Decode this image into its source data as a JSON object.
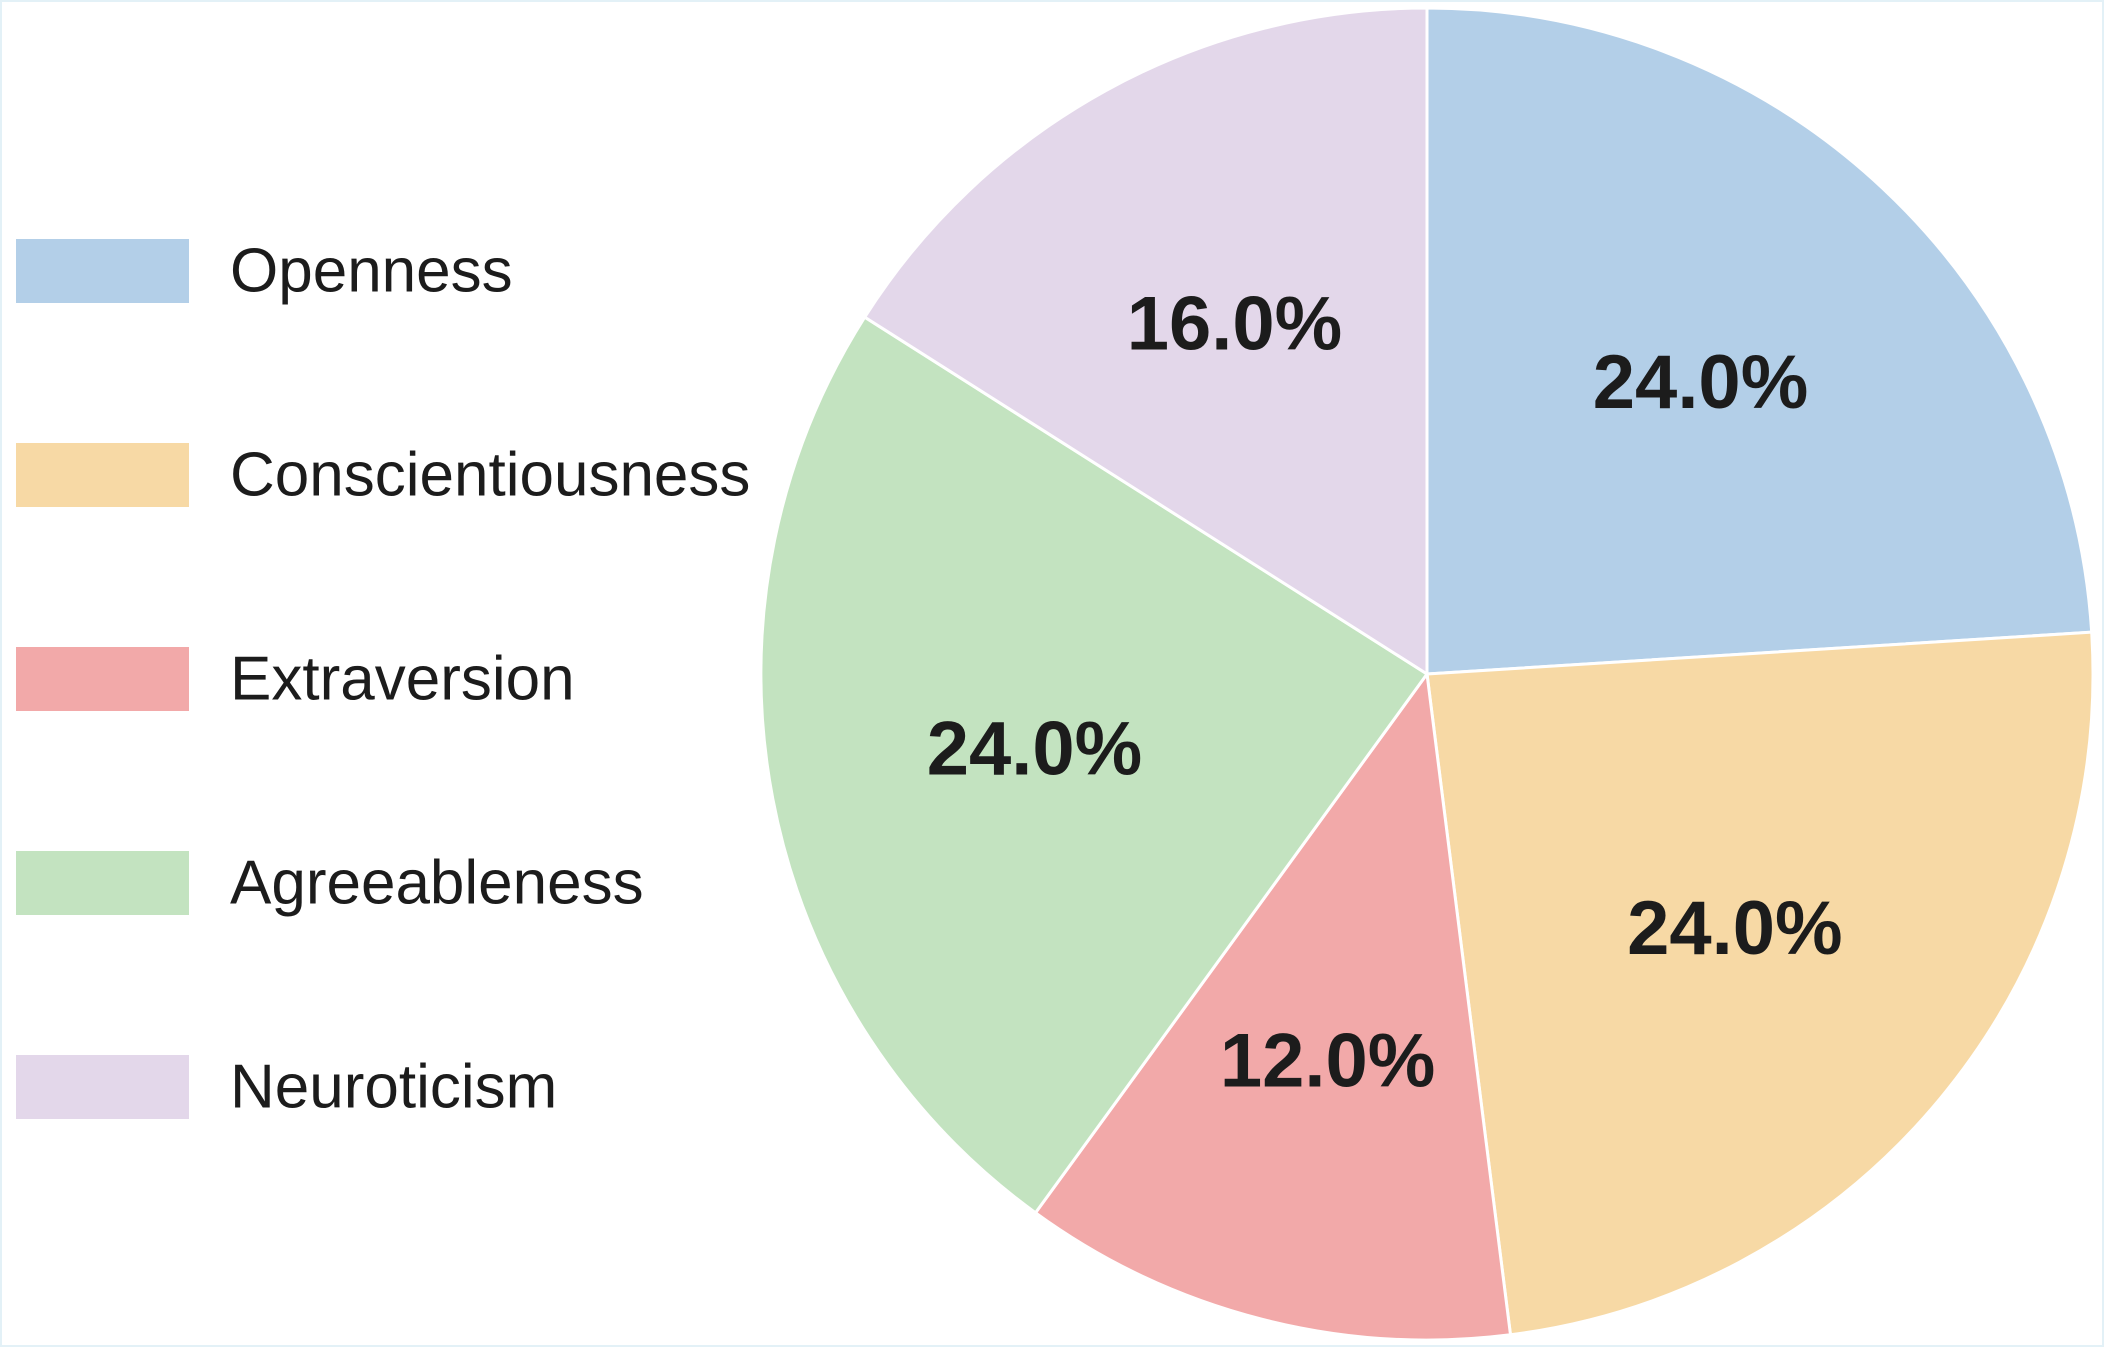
{
  "chart_data": {
    "type": "pie",
    "title": "",
    "categories": [
      "Openness",
      "Conscientiousness",
      "Extraversion",
      "Agreeableness",
      "Neuroticism"
    ],
    "values": [
      24.0,
      24.0,
      12.0,
      24.0,
      16.0
    ],
    "labels": [
      "24.0%",
      "24.0%",
      "12.0%",
      "24.0%",
      "16.0%"
    ],
    "colors": [
      "#b3cfe8",
      "#f7d9a5",
      "#f2a9a9",
      "#c3e3c0",
      "#e3d7ea"
    ],
    "legend_position": "left",
    "start_direction": "up",
    "direction": "clockwise"
  }
}
